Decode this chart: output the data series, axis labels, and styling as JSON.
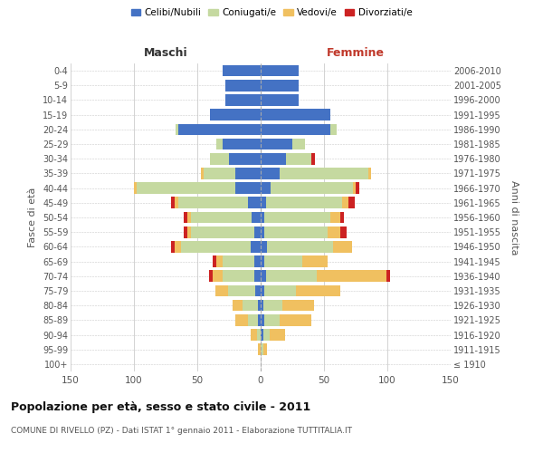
{
  "age_groups": [
    "100+",
    "95-99",
    "90-94",
    "85-89",
    "80-84",
    "75-79",
    "70-74",
    "65-69",
    "60-64",
    "55-59",
    "50-54",
    "45-49",
    "40-44",
    "35-39",
    "30-34",
    "25-29",
    "20-24",
    "15-19",
    "10-14",
    "5-9",
    "0-4"
  ],
  "birth_years": [
    "≤ 1910",
    "1911-1915",
    "1916-1920",
    "1921-1925",
    "1926-1930",
    "1931-1935",
    "1936-1940",
    "1941-1945",
    "1946-1950",
    "1951-1955",
    "1956-1960",
    "1961-1965",
    "1966-1970",
    "1971-1975",
    "1976-1980",
    "1981-1985",
    "1986-1990",
    "1991-1995",
    "1996-2000",
    "2001-2005",
    "2006-2010"
  ],
  "maschi": {
    "celibi": [
      0,
      0,
      0,
      2,
      2,
      4,
      5,
      5,
      8,
      5,
      7,
      10,
      20,
      20,
      25,
      30,
      65,
      40,
      28,
      28,
      30
    ],
    "coniugati": [
      0,
      0,
      3,
      8,
      12,
      22,
      25,
      25,
      55,
      50,
      48,
      55,
      78,
      25,
      15,
      5,
      2,
      0,
      0,
      0,
      0
    ],
    "vedovi": [
      0,
      2,
      5,
      10,
      8,
      10,
      8,
      5,
      5,
      3,
      3,
      3,
      2,
      2,
      0,
      0,
      0,
      0,
      0,
      0,
      0
    ],
    "divorziati": [
      0,
      0,
      0,
      0,
      0,
      0,
      3,
      3,
      3,
      3,
      3,
      3,
      0,
      0,
      0,
      0,
      0,
      0,
      0,
      0,
      0
    ]
  },
  "femmine": {
    "nubili": [
      0,
      0,
      2,
      3,
      2,
      3,
      4,
      3,
      5,
      3,
      3,
      4,
      8,
      15,
      20,
      25,
      55,
      55,
      30,
      30,
      30
    ],
    "coniugate": [
      0,
      2,
      5,
      12,
      15,
      25,
      40,
      30,
      52,
      50,
      52,
      60,
      65,
      70,
      20,
      10,
      5,
      0,
      0,
      0,
      0
    ],
    "vedove": [
      0,
      3,
      12,
      25,
      25,
      35,
      55,
      20,
      15,
      10,
      8,
      5,
      2,
      2,
      0,
      0,
      0,
      0,
      0,
      0,
      0
    ],
    "divorziate": [
      0,
      0,
      0,
      0,
      0,
      0,
      3,
      0,
      0,
      5,
      3,
      5,
      3,
      0,
      3,
      0,
      0,
      0,
      0,
      0,
      0
    ]
  },
  "color_celibi": "#4472c4",
  "color_coniugati": "#c5d9a0",
  "color_vedovi": "#f0c060",
  "color_divorziati": "#cc2222",
  "title": "Popolazione per età, sesso e stato civile - 2011",
  "subtitle": "COMUNE DI RIVELLO (PZ) - Dati ISTAT 1° gennaio 2011 - Elaborazione TUTTITALIA.IT",
  "xlabel_left": "Maschi",
  "xlabel_right": "Femmine",
  "ylabel_left": "Fasce di età",
  "ylabel_right": "Anni di nascita",
  "xlim": 150,
  "legend_labels": [
    "Celibi/Nubili",
    "Coniugati/e",
    "Vedovi/e",
    "Divorziati/e"
  ]
}
